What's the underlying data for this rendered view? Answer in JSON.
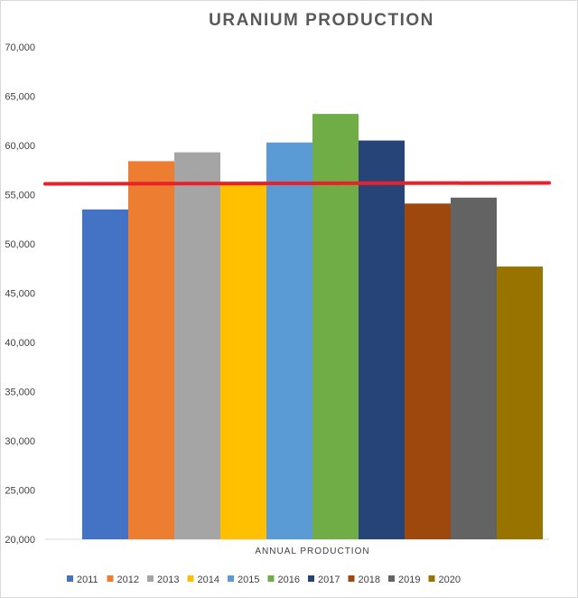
{
  "chart_data": {
    "type": "bar",
    "title": "URANIUM PRODUCTION",
    "xlabel": "ANNUAL PRODUCTION",
    "ylabel": "",
    "ylim": [
      20000,
      70000
    ],
    "y_ticks": [
      "20,000",
      "25,000",
      "30,000",
      "35,000",
      "40,000",
      "45,000",
      "50,000",
      "55,000",
      "60,000",
      "65,000",
      "70,000"
    ],
    "grid": false,
    "legend_position": "bottom",
    "series": [
      {
        "name": "2011",
        "value": 53500,
        "color": "#4472C4"
      },
      {
        "name": "2012",
        "value": 58400,
        "color": "#ED7D31"
      },
      {
        "name": "2013",
        "value": 59300,
        "color": "#A5A5A5"
      },
      {
        "name": "2014",
        "value": 56000,
        "color": "#FFC000"
      },
      {
        "name": "2015",
        "value": 60300,
        "color": "#5B9BD5"
      },
      {
        "name": "2016",
        "value": 63200,
        "color": "#70AD47"
      },
      {
        "name": "2017",
        "value": 60500,
        "color": "#264478"
      },
      {
        "name": "2018",
        "value": 54100,
        "color": "#9E480E"
      },
      {
        "name": "2019",
        "value": 54700,
        "color": "#636363"
      },
      {
        "name": "2020",
        "value": 47700,
        "color": "#997300"
      }
    ],
    "reference_line": {
      "value": 56100,
      "color": "#E8212B"
    }
  }
}
